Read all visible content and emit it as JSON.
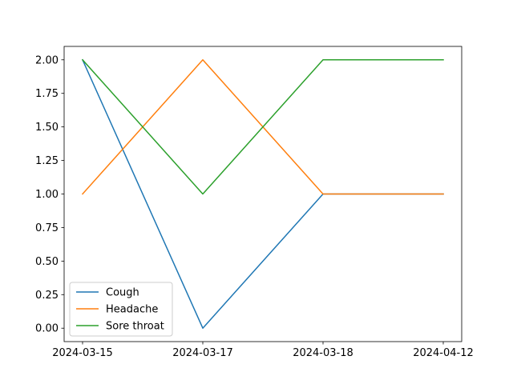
{
  "chart_data": {
    "type": "line",
    "title": "",
    "xlabel": "",
    "ylabel": "",
    "categories": [
      "2024-03-15",
      "2024-03-17",
      "2024-03-18",
      "2024-04-12"
    ],
    "ylim": [
      -0.1,
      2.1
    ],
    "yticks": [
      "0.00",
      "0.25",
      "0.50",
      "0.75",
      "1.00",
      "1.25",
      "1.50",
      "1.75",
      "2.00"
    ],
    "grid": false,
    "legend_position": "lower-left",
    "series": [
      {
        "name": "Cough",
        "color": "#1f77b4",
        "values": [
          2,
          0,
          1,
          1
        ]
      },
      {
        "name": "Headache",
        "color": "#ff7f0e",
        "values": [
          1,
          2,
          1,
          1
        ]
      },
      {
        "name": "Sore throat",
        "color": "#2ca02c",
        "values": [
          2,
          1,
          2,
          2
        ]
      }
    ]
  }
}
